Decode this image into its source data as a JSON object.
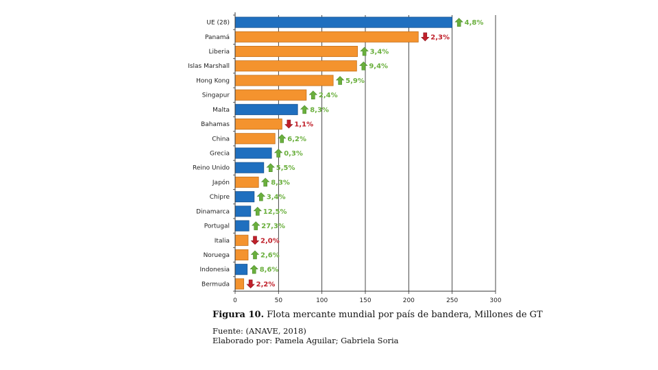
{
  "chart_data": {
    "type": "bar",
    "orientation": "horizontal",
    "categories": [
      "UE (28)",
      "Panamá",
      "Liberia",
      "Islas Marshall",
      "Hong Kong",
      "Singapur",
      "Malta",
      "Bahamas",
      "China",
      "Grecia",
      "Reino Unido",
      "Japón",
      "Chipre",
      "Dinamarca",
      "Portugal",
      "Italia",
      "Noruega",
      "Indonesia",
      "Bermuda"
    ],
    "values": [
      250,
      211,
      141,
      140,
      113,
      82,
      72,
      54,
      46,
      42,
      33,
      27,
      22,
      18,
      16,
      15,
      15,
      14,
      10
    ],
    "bar_colors": [
      "#1f6fbf",
      "#f4932e",
      "#f4932e",
      "#f4932e",
      "#f4932e",
      "#f4932e",
      "#1f6fbf",
      "#f4932e",
      "#f4932e",
      "#1f6fbf",
      "#1f6fbf",
      "#f4932e",
      "#1f6fbf",
      "#1f6fbf",
      "#1f6fbf",
      "#f4932e",
      "#f4932e",
      "#1f6fbf",
      "#f4932e"
    ],
    "changes": [
      "4,8%",
      "2,3%",
      "3,4%",
      "9,4%",
      "5,9%",
      "2,4%",
      "8,3%",
      "1,1%",
      "6,2%",
      "0,3%",
      "5,5%",
      "8,3%",
      "3,4%",
      "12,5%",
      "27,3%",
      "2,0%",
      "2,6%",
      "8,6%",
      "2,2%"
    ],
    "change_direction": [
      "up",
      "down",
      "up",
      "up",
      "up",
      "up",
      "up",
      "down",
      "up",
      "up",
      "up",
      "up",
      "up",
      "up",
      "up",
      "down",
      "up",
      "up",
      "down"
    ],
    "xlim": [
      0,
      300
    ],
    "xticks": [
      0,
      50,
      100,
      150,
      200,
      250,
      300
    ],
    "grid": true,
    "colors": {
      "eu": "#1f6fbf",
      "non_eu": "#f4932e",
      "up_arrow": "#6aaf3d",
      "down_arrow": "#c0202a",
      "up_text": "#6aaf3d",
      "down_text": "#c0202a"
    }
  },
  "caption": {
    "figure_label": "Figura 10.",
    "title": " Flota mercante mundial por país de bandera, Millones de GT",
    "source": "Fuente: (ANAVE, 2018)",
    "author": "Elaborado por: Pamela Aguilar; Gabriela Soria"
  }
}
